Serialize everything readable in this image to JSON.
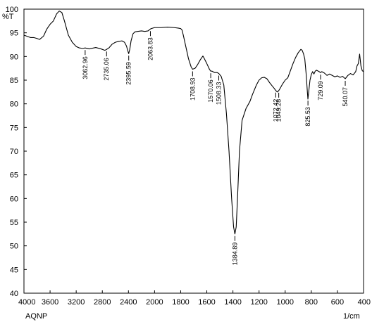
{
  "chart_data": {
    "type": "line",
    "ylabel": "%T",
    "xlabel": "1/cm",
    "sample_label": "AQNP",
    "xlim": [
      4000,
      400
    ],
    "ylim": [
      40,
      100
    ],
    "x_ticks": [
      4000,
      3600,
      3200,
      2800,
      2400,
      2000,
      1800,
      1600,
      1400,
      1200,
      1000,
      800,
      600,
      400
    ],
    "y_ticks": [
      40,
      45,
      50,
      55,
      60,
      65,
      70,
      75,
      80,
      85,
      90,
      95,
      100
    ],
    "series": [
      {
        "color": "#000000",
        "x": [
          4000,
          3900,
          3850,
          3800,
          3760,
          3700,
          3650,
          3600,
          3550,
          3500,
          3460,
          3420,
          3380,
          3320,
          3260,
          3200,
          3150,
          3100,
          3063,
          3000,
          2900,
          2820,
          2760,
          2735,
          2700,
          2650,
          2600,
          2550,
          2500,
          2460,
          2430,
          2410,
          2396,
          2380,
          2360,
          2330,
          2300,
          2260,
          2200,
          2150,
          2100,
          2064,
          2050,
          2000,
          1950,
          1900,
          1850,
          1820,
          1800,
          1790,
          1780,
          1760,
          1740,
          1720,
          1709,
          1690,
          1670,
          1650,
          1630,
          1620,
          1600,
          1580,
          1570,
          1560,
          1540,
          1520,
          1508,
          1490,
          1470,
          1450,
          1430,
          1410,
          1395,
          1385,
          1375,
          1365,
          1350,
          1330,
          1300,
          1270,
          1250,
          1220,
          1200,
          1180,
          1160,
          1140,
          1120,
          1100,
          1085,
          1072,
          1060,
          1049,
          1040,
          1020,
          1000,
          980,
          960,
          940,
          920,
          900,
          880,
          870,
          860,
          850,
          840,
          830,
          826,
          820,
          810,
          800,
          790,
          780,
          770,
          760,
          740,
          729,
          720,
          700,
          680,
          660,
          640,
          620,
          600,
          580,
          560,
          540,
          520,
          500,
          480,
          460,
          450,
          440,
          430,
          420,
          410,
          400
        ],
        "y": [
          94.5,
          94.0,
          94.0,
          93.8,
          93.6,
          94.3,
          95.8,
          96.8,
          97.5,
          99.0,
          99.6,
          99.3,
          97.5,
          94.5,
          93.0,
          92.1,
          91.8,
          91.7,
          91.8,
          91.6,
          91.9,
          91.6,
          91.3,
          91.5,
          91.8,
          92.6,
          93.0,
          93.2,
          93.3,
          93.0,
          92.2,
          91.2,
          90.6,
          91.5,
          93.3,
          94.8,
          95.2,
          95.3,
          95.4,
          95.3,
          95.4,
          95.8,
          95.9,
          96.1,
          96.1,
          96.2,
          96.1,
          96.0,
          95.9,
          95.6,
          94.5,
          92.0,
          89.5,
          87.8,
          87.3,
          87.5,
          88.3,
          89.3,
          90.1,
          89.6,
          88.5,
          87.3,
          86.9,
          86.9,
          86.6,
          86.6,
          86.4,
          85.8,
          84.0,
          78.0,
          70.0,
          60.0,
          54.0,
          52.5,
          54.0,
          60.0,
          70.0,
          76.5,
          79.0,
          80.5,
          82.0,
          84.0,
          85.0,
          85.5,
          85.6,
          85.3,
          84.5,
          83.8,
          83.3,
          82.8,
          82.5,
          82.8,
          83.2,
          84.2,
          85.0,
          85.5,
          87.0,
          88.5,
          89.8,
          90.8,
          91.5,
          91.3,
          90.6,
          89.5,
          86.5,
          82.5,
          81.0,
          82.5,
          85.0,
          86.2,
          86.8,
          86.3,
          86.9,
          87.1,
          86.8,
          86.6,
          86.8,
          86.5,
          86.0,
          86.3,
          86.0,
          85.7,
          85.9,
          85.6,
          85.8,
          85.3,
          86.0,
          86.4,
          86.1,
          86.8,
          88.0,
          88.5,
          90.5,
          88.0,
          87.0,
          86.8
        ]
      }
    ],
    "peaks": [
      {
        "x": 3062.96,
        "label": "3062.96"
      },
      {
        "x": 2735.06,
        "label": "2735.06"
      },
      {
        "x": 2395.59,
        "label": "2395.59"
      },
      {
        "x": 2063.83,
        "label": "2063.83"
      },
      {
        "x": 1708.93,
        "label": "1708.93"
      },
      {
        "x": 1570.06,
        "label": "1570.06"
      },
      {
        "x": 1508.33,
        "label": "1508.33"
      },
      {
        "x": 1384.89,
        "label": "1384.89"
      },
      {
        "x": 1072.42,
        "label": "1072.42"
      },
      {
        "x": 1049.28,
        "label": "1049.28"
      },
      {
        "x": 825.53,
        "label": "825.53"
      },
      {
        "x": 729.09,
        "label": "729.09"
      },
      {
        "x": 540.07,
        "label": "540.07"
      }
    ]
  }
}
